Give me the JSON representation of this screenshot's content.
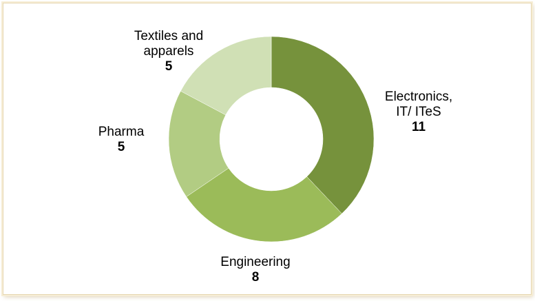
{
  "chart_data": {
    "type": "pie",
    "title": "",
    "donut": true,
    "slices": [
      {
        "category_lines": [
          "Electronics,",
          "IT/ ITeS"
        ],
        "value": 11,
        "color": "#76923c"
      },
      {
        "category_lines": [
          "Engineering"
        ],
        "value": 8,
        "color": "#9bbb59"
      },
      {
        "category_lines": [
          "Pharma"
        ],
        "value": 5,
        "color": "#b2cc83"
      },
      {
        "category_lines": [
          "Textiles and",
          "apparels"
        ],
        "value": 5,
        "color": "#d0e0b5"
      }
    ],
    "legend": "none",
    "data_labels": "category and value"
  }
}
